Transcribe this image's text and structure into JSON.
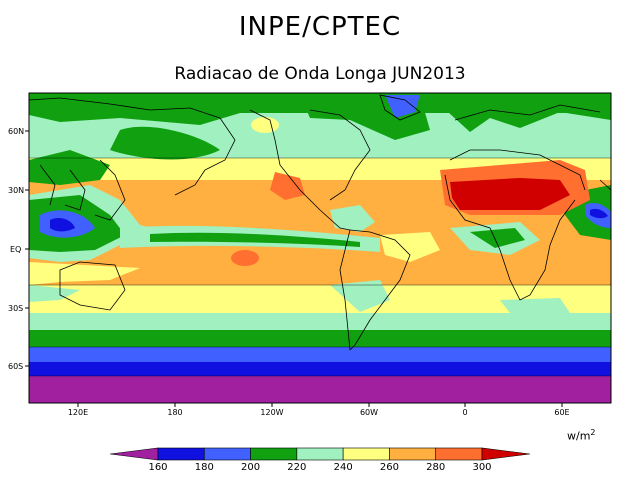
{
  "title": "INPE/CPTEC",
  "subtitle": "Radiacao de Onda Longa JUN2013",
  "lat_labels": [
    "60N",
    "30N",
    "EQ",
    "30S",
    "60S"
  ],
  "lon_labels": [
    "120E",
    "180",
    "120W",
    "60W",
    "0",
    "60E"
  ],
  "units": {
    "base": "w/m",
    "exp": "2"
  },
  "colorbar": {
    "ticks": [
      "160",
      "180",
      "200",
      "220",
      "240",
      "260",
      "280",
      "300"
    ],
    "colors": [
      "#a020a0",
      "#1010e0",
      "#4060ff",
      "#10a010",
      "#a0f0c0",
      "#ffff80",
      "#ffb040",
      "#ff7030",
      "#d00000"
    ]
  },
  "colors": {
    "ocean_tropics": "#ffb040",
    "sahara": "#d00000",
    "land_outline": "#000000"
  }
}
